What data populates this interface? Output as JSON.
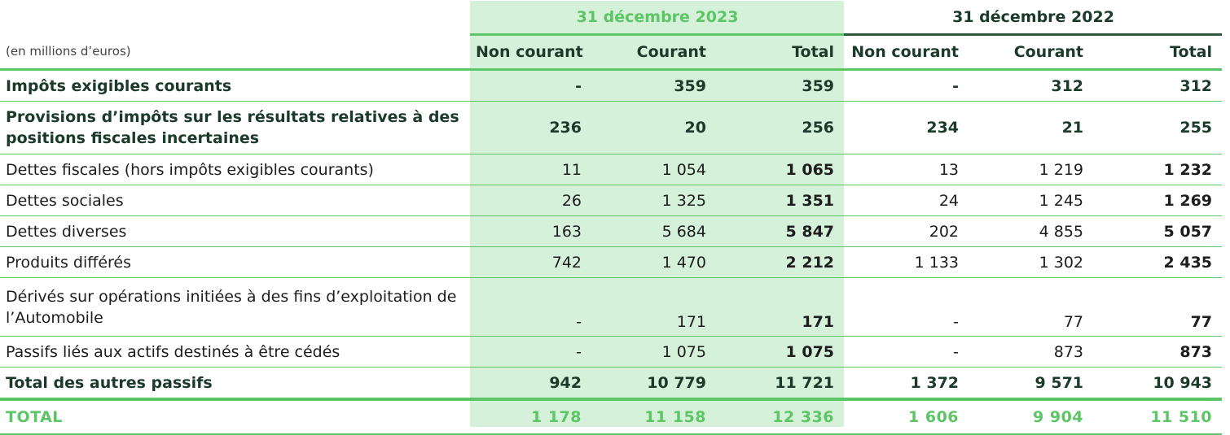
{
  "periods": [
    "31 décembre 2023",
    "31 décembre 2022"
  ],
  "unit": "(en millions d’euros)",
  "columns": [
    "Non courant",
    "Courant",
    "Total",
    "Non courant",
    "Courant",
    "Total"
  ],
  "rows": [
    {
      "label": "Impôts exigibles courants",
      "values": [
        "-",
        "359",
        "359",
        "-",
        "312",
        "312"
      ]
    },
    {
      "label": "Provisions d’impôts sur les résultats relatives à des positions fiscales incertaines",
      "values": [
        "236",
        "20",
        "256",
        "234",
        "21",
        "255"
      ]
    },
    {
      "label": "Dettes fiscales (hors impôts exigibles courants)",
      "values": [
        "11",
        "1 054",
        "1 065",
        "13",
        "1 219",
        "1 232"
      ]
    },
    {
      "label": "Dettes sociales",
      "values": [
        "26",
        "1 325",
        "1 351",
        "24",
        "1 245",
        "1 269"
      ]
    },
    {
      "label": "Dettes diverses",
      "values": [
        "163",
        "5 684",
        "5 847",
        "202",
        "4 855",
        "5 057"
      ]
    },
    {
      "label": "Produits différés",
      "values": [
        "742",
        "1 470",
        "2 212",
        "1 133",
        "1 302",
        "2 435"
      ]
    },
    {
      "label": "Dérivés sur opérations initiées à des fins d’exploitation de l’Automobile",
      "values": [
        "-",
        "171",
        "171",
        "-",
        "77",
        "77"
      ]
    },
    {
      "label": "Passifs liés aux actifs destinés à être cédés",
      "values": [
        "-",
        "1 075",
        "1 075",
        "-",
        "873",
        "873"
      ]
    },
    {
      "label": "Total des autres passifs",
      "values": [
        "942",
        "10 779",
        "11 721",
        "1 372",
        "9 571",
        "10 943"
      ]
    },
    {
      "label": "TOTAL",
      "values": [
        "1 178",
        "11 158",
        "12 336",
        "1 606",
        "9 904",
        "11 510"
      ]
    }
  ]
}
